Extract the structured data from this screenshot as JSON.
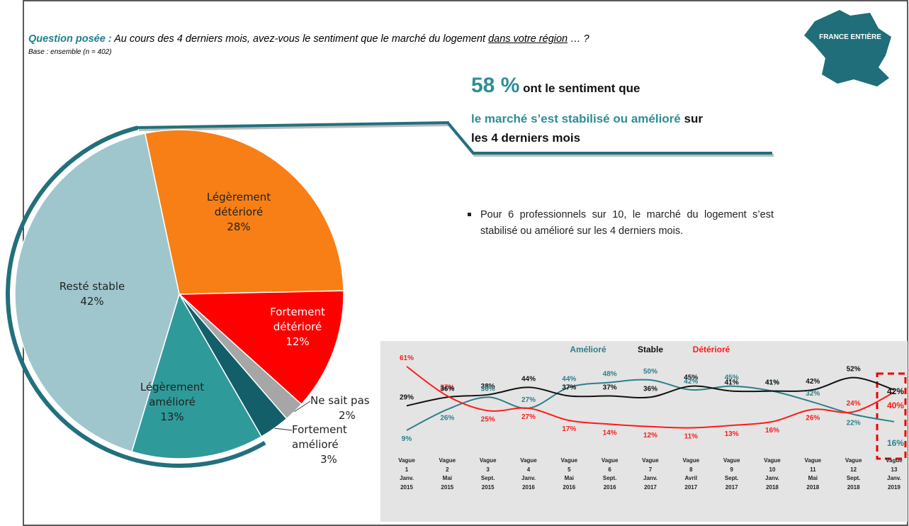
{
  "question": {
    "lead": "Question posée :",
    "text": "Au cours des 4 derniers mois, avez-vous le sentiment que le marché du logement",
    "underlined": "dans votre région",
    "end": "… ?",
    "base": "Base : ensemble (n = 402)"
  },
  "badge": "FRANCE ENTIÈRE",
  "headline": {
    "number": "58 %",
    "text1": "ont le sentiment que",
    "highlight": "le marché s’est stabilisé ou amélioré",
    "text2": "sur",
    "text3": "les 4 derniers mois"
  },
  "bullet": "Pour 6 professionnels sur 10, le marché du logement s’est stabilisé ou amélioré sur les 4 derniers mois.",
  "chart_data": [
    {
      "type": "pie",
      "categories": [
        "Légèrement détérioré",
        "Fortement détérioré",
        "Ne sait pas",
        "Fortement amélioré",
        "Légèrement amélioré",
        "Resté stable"
      ],
      "values": [
        28,
        12,
        2,
        3,
        13,
        42
      ],
      "value_labels": [
        "28%",
        "12%",
        "2%",
        "3%",
        "13%",
        "42%"
      ],
      "colors": [
        "#f77f16",
        "#fe0000",
        "#a6a6a6",
        "#145e6a",
        "#2f9a9a",
        "#a0c6cd"
      ]
    },
    {
      "type": "line",
      "categories": [
        [
          "Vague",
          "1",
          "Janv.",
          "2015"
        ],
        [
          "Vague",
          "2",
          "Mai",
          "2015"
        ],
        [
          "Vague",
          "3",
          "Sept.",
          "2015"
        ],
        [
          "Vague",
          "4",
          "Janv.",
          "2016"
        ],
        [
          "Vague",
          "5",
          "Mai",
          "2016"
        ],
        [
          "Vague",
          "6",
          "Sept.",
          "2016"
        ],
        [
          "Vague",
          "7",
          "Janv.",
          "2017"
        ],
        [
          "Vague",
          "8",
          "Avril",
          "2017"
        ],
        [
          "Vague",
          "9",
          "Sept.",
          "2017"
        ],
        [
          "Vague",
          "10",
          "Janv.",
          "2018"
        ],
        [
          "Vague",
          "11",
          "Mai",
          "2018"
        ],
        [
          "Vague",
          "12",
          "Sept.",
          "2018"
        ],
        [
          "Vague",
          "13",
          "Janv.",
          "2019"
        ]
      ],
      "series": [
        {
          "name": "Amélioré",
          "color": "#2e7f8a",
          "values": [
            9,
            26,
            36,
            27,
            44,
            48,
            50,
            42,
            45,
            41,
            32,
            22,
            16
          ],
          "value_labels": [
            "9%",
            "26%",
            "36%",
            "27%",
            "44%",
            "48%",
            "50%",
            "42%",
            "45%",
            "41%",
            "32%",
            "22%",
            "16%"
          ]
        },
        {
          "name": "Stable",
          "color": "#111111",
          "values": [
            29,
            36,
            38,
            44,
            37,
            37,
            36,
            45,
            41,
            41,
            42,
            52,
            42
          ],
          "value_labels": [
            "29%",
            "36%",
            "38%",
            "44%",
            "37%",
            "37%",
            "36%",
            "45%",
            "41%",
            "41%",
            "42%",
            "52%",
            "42%"
          ]
        },
        {
          "name": "Détérioré",
          "color": "#ff1a1a",
          "values": [
            61,
            37,
            25,
            27,
            17,
            14,
            12,
            11,
            13,
            16,
            26,
            24,
            40
          ],
          "value_labels": [
            "61%",
            "37%",
            "25%",
            "27%",
            "17%",
            "14%",
            "12%",
            "11%",
            "13%",
            "16%",
            "26%",
            "24%",
            "40%"
          ]
        }
      ]
    }
  ]
}
